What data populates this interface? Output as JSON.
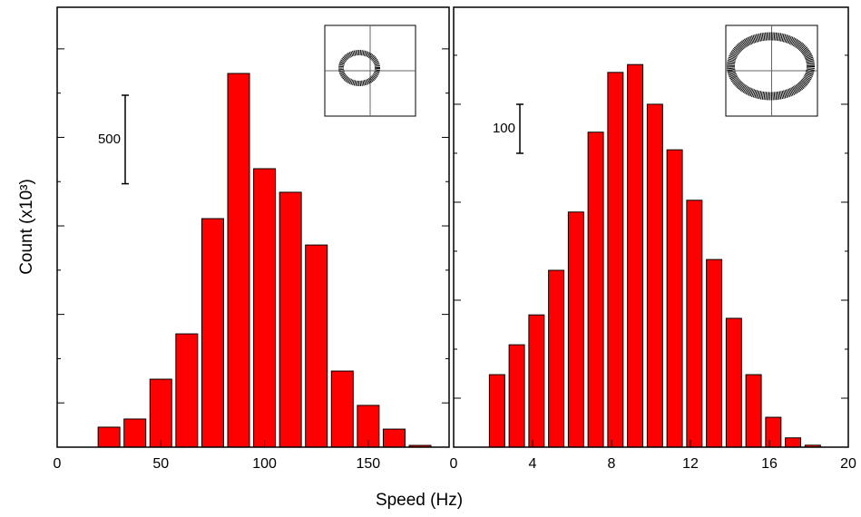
{
  "shared": {
    "x_label": "Speed (Hz)",
    "y_label": "Count (x10³)"
  },
  "chart_data": [
    {
      "type": "bar",
      "x": [
        25,
        37.5,
        50,
        62.5,
        75,
        87.5,
        100,
        112.5,
        125,
        137.5,
        150,
        162.5,
        175
      ],
      "values": [
        113,
        159,
        384,
        640,
        1291,
        2111,
        1573,
        1440,
        1142,
        430,
        236,
        102,
        10
      ],
      "color": "#ff0000",
      "xlim": [
        0,
        189
      ],
      "xticks": [
        0,
        50,
        100,
        150
      ],
      "ylim": [
        0,
        2485
      ],
      "yticks": [
        0,
        250,
        500,
        750,
        1000,
        1250,
        1500,
        1750,
        2000,
        2250
      ],
      "scale_bar": 500
    },
    {
      "type": "bar",
      "x": [
        2.2,
        3.2,
        4.2,
        5.2,
        6.2,
        7.2,
        8.2,
        9.2,
        10.2,
        11.2,
        12.2,
        13.2,
        14.2,
        15.2,
        16.2,
        17.2,
        18.2
      ],
      "values": [
        148,
        209,
        270,
        361,
        480,
        643,
        765,
        781,
        700,
        607,
        504,
        383,
        263,
        148,
        61,
        19,
        4
      ],
      "color": "#ff0000",
      "xlim": [
        0,
        20
      ],
      "xticks": [
        0,
        4,
        8,
        12,
        16,
        20
      ],
      "ylim": [
        0,
        898
      ],
      "yticks": [
        0,
        100,
        200,
        300,
        400,
        500,
        600,
        700,
        800
      ],
      "scale_bar": 100
    }
  ]
}
